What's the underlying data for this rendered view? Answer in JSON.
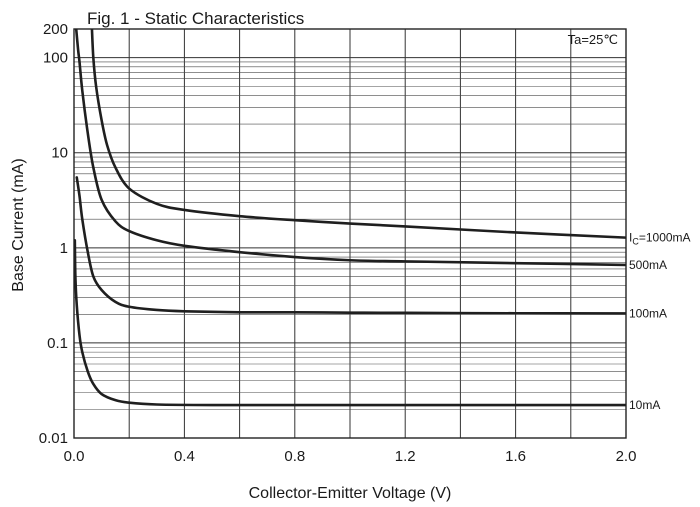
{
  "chart_data": {
    "type": "line",
    "title": "Fig. 1 - Static Characteristics",
    "xlabel": "Collector-Emitter Voltage (V)",
    "ylabel": "Base Current (mA)",
    "annotation": "Ta=25℃",
    "xlim": [
      0,
      2.0
    ],
    "ylim": [
      0.01,
      200
    ],
    "yscale": "log",
    "grid": true,
    "x_ticks": [
      "0.0",
      "0.4",
      "0.8",
      "1.2",
      "1.6",
      "2.0"
    ],
    "y_ticks": [
      {
        "value": 0.01,
        "label": "0.01"
      },
      {
        "value": 0.1,
        "label": "0.1"
      },
      {
        "value": 1,
        "label": "1"
      },
      {
        "value": 10,
        "label": "10"
      },
      {
        "value": 100,
        "label": "100"
      },
      {
        "value": 200,
        "label": "200"
      }
    ],
    "series": [
      {
        "label_prefix": "I",
        "label_sub": "C",
        "label_suffix": "=1000mA",
        "x": [
          0.065,
          0.07,
          0.08,
          0.1,
          0.12,
          0.15,
          0.2,
          0.3,
          0.4,
          0.6,
          0.8,
          1.0,
          1.2,
          1.6,
          2.0
        ],
        "y": [
          200,
          100,
          50,
          22,
          12,
          7,
          4.2,
          2.9,
          2.5,
          2.15,
          1.95,
          1.8,
          1.68,
          1.45,
          1.28
        ]
      },
      {
        "name": "500mA",
        "x": [
          0.008,
          0.015,
          0.02,
          0.03,
          0.05,
          0.07,
          0.1,
          0.15,
          0.2,
          0.3,
          0.4,
          0.6,
          0.8,
          1.0,
          1.2,
          1.6,
          2.0
        ],
        "y": [
          200,
          120,
          90,
          45,
          16,
          7,
          3.2,
          1.9,
          1.5,
          1.2,
          1.05,
          0.9,
          0.8,
          0.74,
          0.72,
          0.69,
          0.66
        ]
      },
      {
        "name": "100mA",
        "x": [
          0.01,
          0.02,
          0.03,
          0.05,
          0.07,
          0.1,
          0.15,
          0.2,
          0.3,
          0.4,
          0.6,
          0.8,
          1.0,
          1.2,
          1.6,
          2.0
        ],
        "y": [
          5.5,
          3.5,
          2,
          0.9,
          0.5,
          0.36,
          0.27,
          0.24,
          0.222,
          0.215,
          0.21,
          0.21,
          0.208,
          0.207,
          0.205,
          0.204
        ]
      },
      {
        "name": "10mA",
        "x": [
          0.003,
          0.005,
          0.01,
          0.02,
          0.03,
          0.05,
          0.07,
          0.1,
          0.15,
          0.2,
          0.3,
          0.5,
          1.0,
          1.5,
          2.0
        ],
        "y": [
          1.2,
          0.5,
          0.25,
          0.12,
          0.08,
          0.05,
          0.037,
          0.029,
          0.025,
          0.0235,
          0.0225,
          0.0222,
          0.0222,
          0.0222,
          0.0222
        ]
      }
    ]
  }
}
